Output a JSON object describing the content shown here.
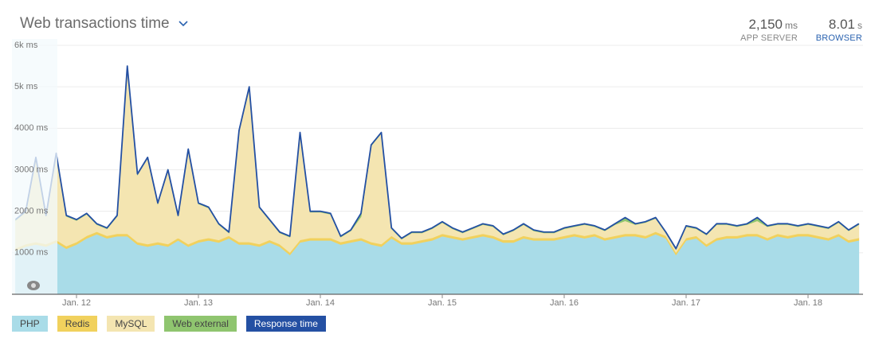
{
  "header": {
    "title": "Web transactions time",
    "stats": [
      {
        "value": "2,150",
        "unit": "ms",
        "label": "APP SERVER"
      },
      {
        "value": "8.01",
        "unit": "s",
        "label": "BROWSER"
      }
    ]
  },
  "chart_data": {
    "type": "stacked-area",
    "categories": [
      null,
      null,
      null,
      null,
      null,
      null,
      "Jan. 12",
      null,
      null,
      null,
      null,
      null,
      null,
      null,
      null,
      null,
      null,
      null,
      "Jan. 13",
      null,
      null,
      null,
      null,
      null,
      null,
      null,
      null,
      null,
      null,
      null,
      "Jan. 14",
      null,
      null,
      null,
      null,
      null,
      null,
      null,
      null,
      null,
      null,
      null,
      "Jan. 15",
      null,
      null,
      null,
      null,
      null,
      null,
      null,
      null,
      null,
      null,
      null,
      "Jan. 16",
      null,
      null,
      null,
      null,
      null,
      null,
      null,
      null,
      null,
      null,
      null,
      "Jan. 17",
      null,
      null,
      null,
      null,
      null,
      null,
      null,
      null,
      null,
      null,
      null,
      "Jan. 18",
      null,
      null,
      null,
      null,
      null
    ],
    "ylim": [
      0,
      6000
    ],
    "yticks": [
      {
        "value": 1000,
        "label": "1000 ms"
      },
      {
        "value": 2000,
        "label": "2000 ms"
      },
      {
        "value": 3000,
        "label": "3000 ms"
      },
      {
        "value": 4000,
        "label": "4000 ms"
      },
      {
        "value": 5000,
        "label": "5k ms"
      },
      {
        "value": 6000,
        "label": "6k ms"
      }
    ],
    "grid": true,
    "series": [
      {
        "name": "PHP",
        "color": "#a9dce8",
        "values": [
          1050,
          1150,
          1200,
          1150,
          1250,
          1100,
          1200,
          1350,
          1450,
          1350,
          1400,
          1400,
          1200,
          1150,
          1200,
          1150,
          1300,
          1150,
          1250,
          1300,
          1250,
          1350,
          1200,
          1200,
          1150,
          1250,
          1150,
          950,
          1250,
          1300,
          1300,
          1300,
          1200,
          1250,
          1300,
          1200,
          1150,
          1350,
          1200,
          1200,
          1250,
          1300,
          1400,
          1350,
          1300,
          1350,
          1400,
          1350,
          1250,
          1250,
          1350,
          1300,
          1300,
          1300,
          1350,
          1400,
          1350,
          1400,
          1300,
          1350,
          1400,
          1400,
          1350,
          1450,
          1350,
          950,
          1300,
          1350,
          1150,
          1300,
          1350,
          1350,
          1400,
          1400,
          1300,
          1400,
          1350,
          1400,
          1400,
          1350,
          1300,
          1400,
          1250,
          1300
        ]
      },
      {
        "name": "Redis",
        "color": "#f1d15d",
        "values": [
          60,
          60,
          60,
          60,
          60,
          60,
          60,
          60,
          60,
          60,
          60,
          60,
          60,
          60,
          60,
          60,
          60,
          60,
          60,
          60,
          60,
          60,
          60,
          60,
          60,
          60,
          60,
          60,
          60,
          60,
          60,
          60,
          60,
          60,
          60,
          60,
          60,
          60,
          60,
          60,
          60,
          60,
          60,
          60,
          60,
          60,
          60,
          60,
          60,
          60,
          60,
          60,
          60,
          60,
          60,
          60,
          60,
          60,
          60,
          60,
          60,
          60,
          60,
          60,
          60,
          60,
          60,
          60,
          60,
          60,
          60,
          60,
          60,
          60,
          60,
          60,
          60,
          60,
          60,
          60,
          60,
          60,
          60,
          60
        ]
      },
      {
        "name": "MySQL",
        "color": "#f4e5b1",
        "values": [
          670,
          770,
          2020,
          670,
          2070,
          720,
          520,
          520,
          170,
          170,
          420,
          4020,
          1620,
          2070,
          920,
          1770,
          520,
          2270,
          870,
          720,
          370,
          70,
          2670,
          3720,
          870,
          470,
          270,
          370,
          2570,
          620,
          620,
          570,
          120,
          220,
          510,
          2320,
          2670,
          170,
          70,
          220,
          170,
          220,
          270,
          170,
          120,
          170,
          220,
          220,
          120,
          220,
          270,
          170,
          120,
          120,
          170,
          170,
          270,
          170,
          170,
          270,
          310,
          220,
          320,
          320,
          70,
          70,
          270,
          170,
          220,
          320,
          270,
          220,
          220,
          310,
          270,
          220,
          270,
          170,
          220,
          220,
          220,
          270,
          220,
          320
        ]
      },
      {
        "name": "Web external",
        "color": "#8fc56f",
        "values": [
          20,
          20,
          20,
          20,
          20,
          20,
          20,
          20,
          20,
          20,
          20,
          20,
          20,
          20,
          20,
          20,
          20,
          20,
          20,
          20,
          20,
          20,
          20,
          20,
          20,
          20,
          20,
          20,
          20,
          20,
          20,
          20,
          20,
          20,
          80,
          20,
          20,
          20,
          20,
          20,
          20,
          20,
          20,
          20,
          20,
          20,
          20,
          20,
          20,
          20,
          20,
          20,
          20,
          20,
          20,
          20,
          20,
          20,
          20,
          20,
          80,
          20,
          20,
          20,
          20,
          20,
          20,
          20,
          20,
          20,
          20,
          20,
          20,
          80,
          20,
          20,
          20,
          20,
          20,
          20,
          20,
          20,
          20,
          20
        ]
      }
    ],
    "line": {
      "name": "Response time",
      "color": "#2450a3",
      "values": [
        1800,
        2000,
        3300,
        1900,
        3400,
        1900,
        1800,
        1950,
        1700,
        1600,
        1900,
        5500,
        2900,
        3300,
        2200,
        3000,
        1900,
        3500,
        2200,
        2100,
        1700,
        1500,
        3950,
        5000,
        2100,
        1800,
        1500,
        1400,
        3900,
        2000,
        2000,
        1950,
        1400,
        1550,
        1950,
        3600,
        3900,
        1600,
        1350,
        1500,
        1500,
        1600,
        1750,
        1600,
        1500,
        1600,
        1700,
        1650,
        1450,
        1550,
        1700,
        1550,
        1500,
        1500,
        1600,
        1650,
        1700,
        1650,
        1550,
        1700,
        1850,
        1700,
        1750,
        1850,
        1500,
        1100,
        1650,
        1600,
        1450,
        1700,
        1700,
        1650,
        1700,
        1850,
        1650,
        1700,
        1700,
        1650,
        1700,
        1650,
        1600,
        1750,
        1550,
        1700
      ]
    }
  }
}
